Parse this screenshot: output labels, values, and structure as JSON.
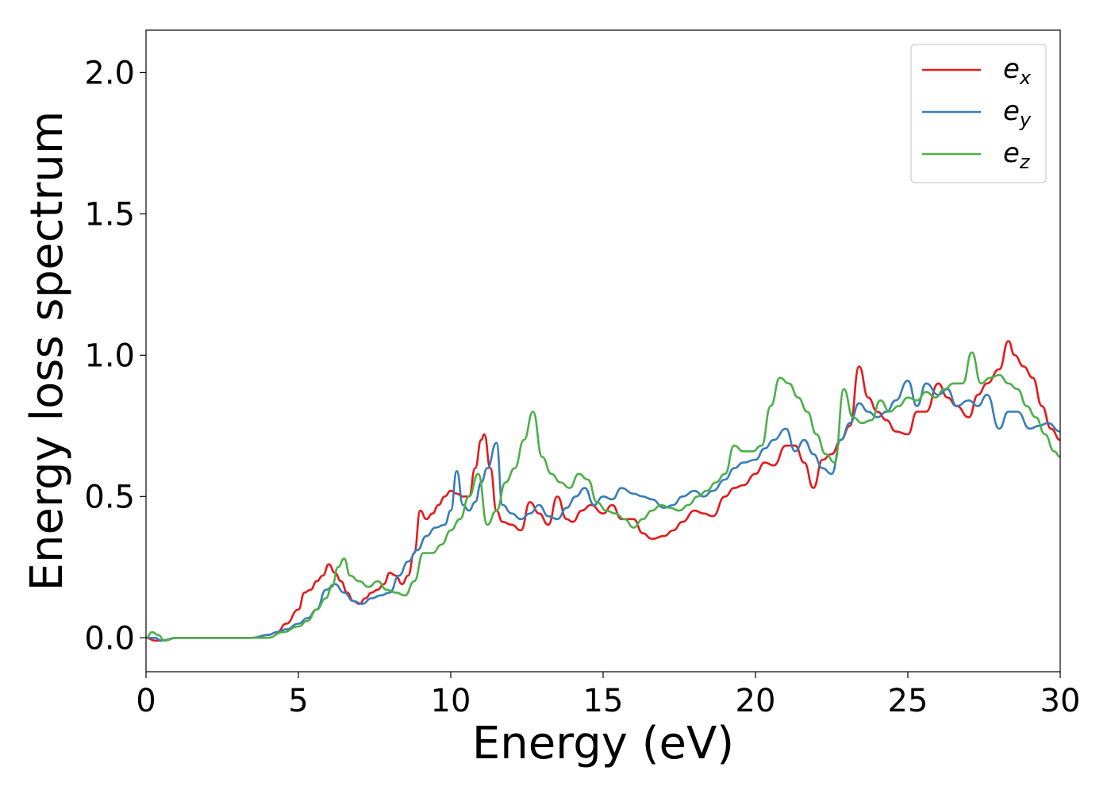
{
  "chart_data": {
    "type": "line",
    "xlabel": "Energy (eV)",
    "ylabel": "Energy loss spectrum",
    "xlim": [
      0,
      30
    ],
    "ylim": [
      -0.12,
      2.15
    ],
    "xticks": [
      "0",
      "5",
      "10",
      "15",
      "20",
      "25",
      "30"
    ],
    "xtick_values": [
      0,
      5,
      10,
      15,
      20,
      25,
      30
    ],
    "yticks": [
      "0.0",
      "0.5",
      "1.0",
      "1.5",
      "2.0"
    ],
    "ytick_values": [
      0.0,
      0.5,
      1.0,
      1.5,
      2.0
    ],
    "grid": false,
    "legend_position": "top-right",
    "series": [
      {
        "name": "e_x",
        "label_base": "e",
        "label_sub": "x",
        "color": "#e41a1c",
        "x": [
          0,
          0.3,
          0.5,
          1,
          2,
          3,
          3.5,
          4,
          4.3,
          4.6,
          5,
          5.2,
          5.4,
          5.6,
          5.8,
          6,
          6.2,
          6.4,
          6.6,
          6.8,
          7,
          7.2,
          7.4,
          7.6,
          7.8,
          8,
          8.2,
          8.4,
          8.6,
          8.8,
          9,
          9.2,
          9.4,
          9.6,
          9.8,
          10,
          10.2,
          10.4,
          10.6,
          10.8,
          11,
          11.1,
          11.3,
          11.5,
          11.7,
          12,
          12.3,
          12.6,
          12.9,
          13.2,
          13.5,
          13.8,
          14,
          14.3,
          14.6,
          15,
          15.3,
          15.6,
          16,
          16.3,
          16.6,
          17,
          17.3,
          17.6,
          18,
          18.3,
          18.6,
          19,
          19.3,
          19.6,
          20,
          20.3,
          20.6,
          21,
          21.3,
          21.6,
          21.9,
          22.2,
          22.5,
          22.8,
          23.1,
          23.4,
          23.7,
          24,
          24.3,
          24.6,
          25,
          25.3,
          25.6,
          26,
          26.3,
          26.6,
          27,
          27.3,
          27.6,
          28,
          28.3,
          28.5,
          28.8,
          29.1,
          29.4,
          29.7,
          30
        ],
        "y": [
          0.0,
          -0.01,
          -0.01,
          0.0,
          0.0,
          0.0,
          0.0,
          0.01,
          0.02,
          0.05,
          0.1,
          0.16,
          0.17,
          0.2,
          0.22,
          0.26,
          0.23,
          0.2,
          0.16,
          0.13,
          0.12,
          0.14,
          0.16,
          0.17,
          0.19,
          0.23,
          0.22,
          0.19,
          0.22,
          0.3,
          0.45,
          0.42,
          0.44,
          0.47,
          0.5,
          0.52,
          0.51,
          0.5,
          0.5,
          0.6,
          0.7,
          0.72,
          0.6,
          0.45,
          0.41,
          0.4,
          0.38,
          0.48,
          0.44,
          0.4,
          0.5,
          0.42,
          0.41,
          0.45,
          0.47,
          0.44,
          0.47,
          0.42,
          0.42,
          0.37,
          0.35,
          0.36,
          0.38,
          0.41,
          0.45,
          0.44,
          0.43,
          0.5,
          0.53,
          0.54,
          0.58,
          0.62,
          0.61,
          0.68,
          0.68,
          0.62,
          0.53,
          0.63,
          0.65,
          0.7,
          0.75,
          0.96,
          0.85,
          0.8,
          0.77,
          0.73,
          0.72,
          0.8,
          0.8,
          0.9,
          0.85,
          0.82,
          0.78,
          0.86,
          0.9,
          0.95,
          1.05,
          1.0,
          0.96,
          0.92,
          0.82,
          0.74,
          0.7
        ]
      },
      {
        "name": "e_y",
        "label_base": "e",
        "label_sub": "y",
        "color": "#377eb8",
        "x": [
          0,
          0.3,
          0.5,
          1,
          2,
          3,
          3.5,
          4,
          4.3,
          4.6,
          5,
          5.3,
          5.6,
          5.9,
          6.2,
          6.5,
          6.8,
          7.1,
          7.4,
          7.7,
          8,
          8.3,
          8.6,
          8.9,
          9.2,
          9.5,
          9.8,
          10,
          10.2,
          10.4,
          10.6,
          10.8,
          11,
          11.2,
          11.5,
          11.7,
          12,
          12.3,
          12.6,
          12.9,
          13.2,
          13.5,
          13.8,
          14.1,
          14.4,
          14.7,
          15,
          15.3,
          15.6,
          16,
          16.3,
          16.6,
          17,
          17.3,
          17.6,
          18,
          18.3,
          18.6,
          19,
          19.3,
          19.6,
          20,
          20.3,
          20.6,
          21,
          21.3,
          21.6,
          21.9,
          22.2,
          22.5,
          22.8,
          23.1,
          23.4,
          23.7,
          24,
          24.3,
          24.6,
          25,
          25.3,
          25.6,
          26,
          26.3,
          26.6,
          27,
          27.3,
          27.6,
          28,
          28.3,
          28.6,
          29,
          29.3,
          29.6,
          30
        ],
        "y": [
          0.0,
          0.0,
          -0.01,
          0.0,
          0.0,
          0.0,
          0.0,
          0.01,
          0.02,
          0.03,
          0.05,
          0.07,
          0.1,
          0.17,
          0.19,
          0.16,
          0.13,
          0.12,
          0.14,
          0.15,
          0.16,
          0.22,
          0.27,
          0.31,
          0.36,
          0.39,
          0.4,
          0.45,
          0.59,
          0.47,
          0.45,
          0.48,
          0.55,
          0.6,
          0.69,
          0.47,
          0.44,
          0.42,
          0.44,
          0.47,
          0.43,
          0.42,
          0.46,
          0.5,
          0.53,
          0.47,
          0.5,
          0.49,
          0.53,
          0.51,
          0.5,
          0.49,
          0.46,
          0.47,
          0.5,
          0.52,
          0.5,
          0.52,
          0.56,
          0.6,
          0.62,
          0.63,
          0.67,
          0.7,
          0.74,
          0.66,
          0.7,
          0.65,
          0.6,
          0.58,
          0.7,
          0.76,
          0.83,
          0.8,
          0.78,
          0.8,
          0.84,
          0.91,
          0.82,
          0.9,
          0.86,
          0.88,
          0.82,
          0.84,
          0.82,
          0.86,
          0.74,
          0.8,
          0.8,
          0.74,
          0.75,
          0.76,
          0.73
        ]
      },
      {
        "name": "e_z",
        "label_base": "e",
        "label_sub": "z",
        "color": "#4daf4a",
        "x": [
          0,
          0.2,
          0.4,
          0.6,
          1,
          2,
          3,
          4,
          4.5,
          5,
          5.3,
          5.6,
          5.9,
          6.1,
          6.3,
          6.5,
          6.7,
          7,
          7.3,
          7.6,
          7.9,
          8.2,
          8.5,
          8.8,
          9.1,
          9.4,
          9.7,
          10,
          10.3,
          10.6,
          10.9,
          11.2,
          11.5,
          11.8,
          12.1,
          12.4,
          12.7,
          13,
          13.3,
          13.6,
          13.9,
          14.2,
          14.5,
          14.8,
          15.1,
          15.4,
          15.7,
          16,
          16.3,
          16.6,
          16.9,
          17.2,
          17.5,
          17.8,
          18.1,
          18.4,
          18.7,
          19,
          19.3,
          19.6,
          19.9,
          20.2,
          20.5,
          20.8,
          21.1,
          21.4,
          21.7,
          22,
          22.3,
          22.6,
          22.9,
          23.2,
          23.5,
          23.8,
          24.1,
          24.4,
          24.7,
          25,
          25.3,
          25.6,
          25.9,
          26.2,
          26.5,
          26.8,
          27.1,
          27.4,
          27.7,
          28,
          28.3,
          28.6,
          28.9,
          29.2,
          29.5,
          29.8,
          30
        ],
        "y": [
          0.0,
          0.02,
          0.01,
          -0.01,
          0.0,
          0.0,
          0.0,
          0.0,
          0.02,
          0.04,
          0.06,
          0.1,
          0.14,
          0.18,
          0.25,
          0.28,
          0.22,
          0.2,
          0.18,
          0.2,
          0.17,
          0.16,
          0.15,
          0.2,
          0.3,
          0.3,
          0.33,
          0.38,
          0.42,
          0.5,
          0.58,
          0.4,
          0.45,
          0.55,
          0.6,
          0.7,
          0.8,
          0.64,
          0.58,
          0.55,
          0.53,
          0.58,
          0.56,
          0.48,
          0.45,
          0.44,
          0.42,
          0.39,
          0.42,
          0.45,
          0.47,
          0.46,
          0.45,
          0.47,
          0.5,
          0.52,
          0.55,
          0.58,
          0.68,
          0.66,
          0.66,
          0.68,
          0.82,
          0.92,
          0.9,
          0.85,
          0.8,
          0.72,
          0.65,
          0.62,
          0.88,
          0.78,
          0.76,
          0.77,
          0.84,
          0.8,
          0.82,
          0.85,
          0.84,
          0.87,
          0.85,
          0.88,
          0.9,
          0.9,
          1.01,
          0.9,
          0.92,
          0.93,
          0.9,
          0.88,
          0.82,
          0.78,
          0.72,
          0.66,
          0.64
        ]
      }
    ]
  }
}
